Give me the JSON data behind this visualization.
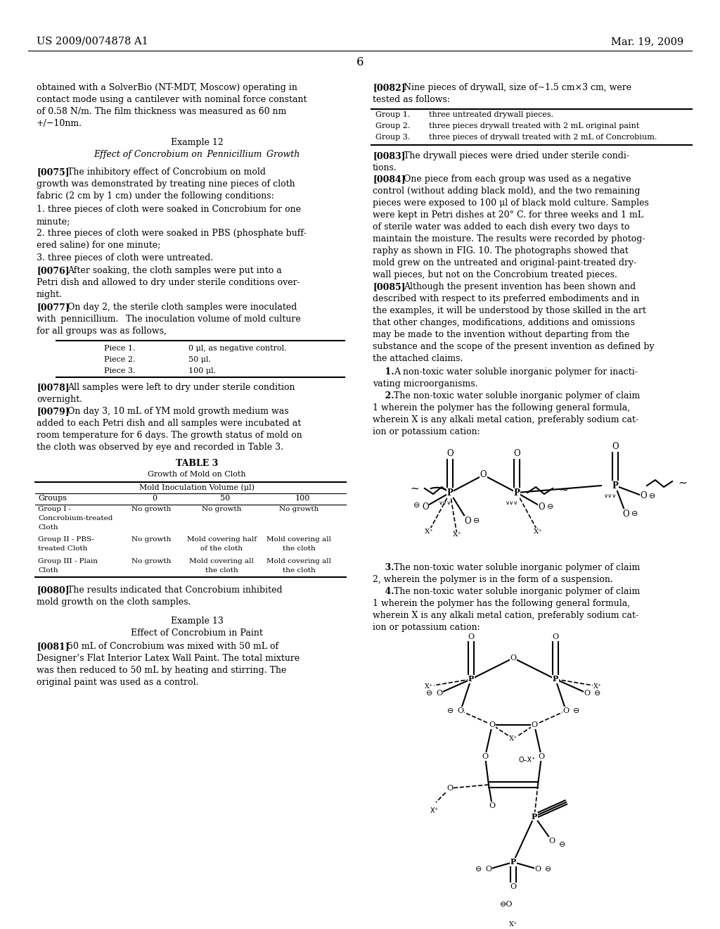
{
  "bg": "#ffffff",
  "header_left": "US 2009/0074878 A1",
  "header_right": "Mar. 19, 2009",
  "page_number": "6"
}
